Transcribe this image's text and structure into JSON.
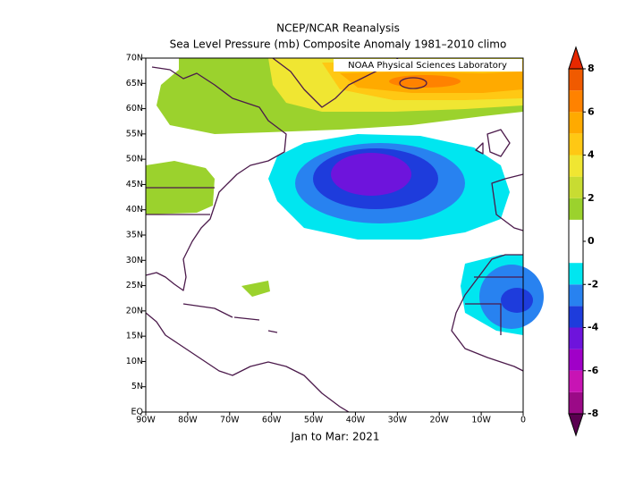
{
  "map": {
    "title": "NCEP/NCAR Reanalysis",
    "subtitle": "Sea Level Pressure (mb) Composite Anomaly 1981–2010 climo",
    "credit": "NOAA Physical Sciences Laboratory",
    "footer": "Jan to Mar: 2021",
    "lon_range": [
      -90,
      0
    ],
    "lat_range": [
      0,
      70
    ],
    "lon_ticks": [
      {
        "value": -90,
        "label": "90W"
      },
      {
        "value": -80,
        "label": "80W"
      },
      {
        "value": -70,
        "label": "70W"
      },
      {
        "value": -60,
        "label": "60W"
      },
      {
        "value": -50,
        "label": "50W"
      },
      {
        "value": -40,
        "label": "40W"
      },
      {
        "value": -30,
        "label": "30W"
      },
      {
        "value": -20,
        "label": "20W"
      },
      {
        "value": -10,
        "label": "10W"
      },
      0
    ],
    "lat_ticks": [
      {
        "value": 0,
        "label": "EQ"
      },
      {
        "value": 5,
        "label": "5N"
      },
      {
        "value": 10,
        "label": "10N"
      },
      {
        "value": 15,
        "label": "15N"
      },
      {
        "value": 20,
        "label": "20N"
      },
      {
        "value": 25,
        "label": "25N"
      },
      {
        "value": 30,
        "label": "30N"
      },
      {
        "value": 35,
        "label": "35N"
      },
      {
        "value": 40,
        "label": "40N"
      },
      {
        "value": 45,
        "label": "45N"
      },
      {
        "value": 50,
        "label": "50N"
      },
      {
        "value": 55,
        "label": "55N"
      },
      {
        "value": 60,
        "label": "60N"
      },
      {
        "value": 65,
        "label": "65N"
      },
      {
        "value": 70,
        "label": "70N"
      }
    ]
  },
  "colorbar": {
    "ticks": [
      8,
      6,
      4,
      2,
      0,
      -2,
      -4,
      -6,
      -8
    ],
    "bounds": [
      -8,
      -7,
      -6,
      -5,
      -4,
      -3,
      -2,
      -1,
      0,
      1,
      2,
      3,
      4,
      5,
      6,
      7,
      8
    ],
    "colors": [
      "#5a0050",
      "#9b0a87",
      "#c814b4",
      "#a000c8",
      "#6e14dc",
      "#1e3cdc",
      "#2882f0",
      "#00e6f0",
      "#ffffff",
      "#ffffff",
      "#9bd22d",
      "#c8dc32",
      "#f0e632",
      "#ffc814",
      "#ffaa00",
      "#ff8200",
      "#f05a00",
      "#e62800"
    ]
  }
}
